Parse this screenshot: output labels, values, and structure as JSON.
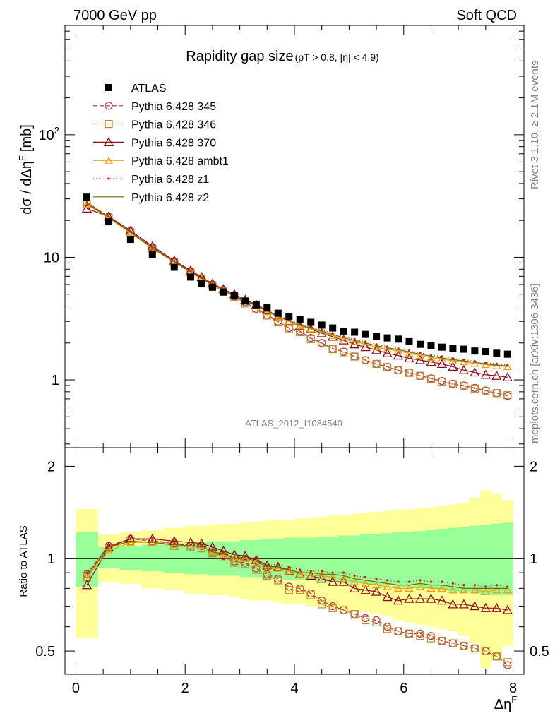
{
  "header": {
    "left": "7000 GeV pp",
    "right": "Soft QCD"
  },
  "side": {
    "top": "Rivet 3.1.10, ≥ 2.1M events",
    "bottom": "mcplots.cern.ch [arXiv:1306.3436]"
  },
  "chart_data": [
    {
      "type": "scatter",
      "title": "Rapidity gap size",
      "title_suffix": "(pT > 0.8, |η| < 4.9)",
      "watermark": "ATLAS_2012_I1084540",
      "ylabel": "dσ / dΔη",
      "ylabel_sup": "F",
      "ylabel_unit": "[mb]",
      "yscale": "log",
      "ylim": [
        0.28,
        780
      ],
      "xlim": [
        -0.2,
        8.2
      ],
      "y_ticks": [
        {
          "v": 1,
          "label": "1",
          "sup": ""
        },
        {
          "v": 10,
          "label": "10",
          "sup": ""
        },
        {
          "v": 100,
          "label": "10",
          "sup": "2"
        }
      ],
      "x": [
        0.2,
        0.6,
        1.0,
        1.4,
        1.8,
        2.1,
        2.3,
        2.5,
        2.7,
        2.9,
        3.1,
        3.3,
        3.5,
        3.7,
        3.9,
        4.1,
        4.3,
        4.5,
        4.7,
        4.9,
        5.1,
        5.3,
        5.5,
        5.7,
        5.9,
        6.1,
        6.3,
        6.5,
        6.7,
        6.9,
        7.1,
        7.3,
        7.5,
        7.7,
        7.9
      ],
      "data": {
        "name": "ATLAS",
        "values": [
          31,
          19.5,
          14,
          10.5,
          8.3,
          6.9,
          6.1,
          5.7,
          5.2,
          4.9,
          4.4,
          4.1,
          3.9,
          3.5,
          3.3,
          3.1,
          2.95,
          2.8,
          2.65,
          2.5,
          2.45,
          2.35,
          2.25,
          2.2,
          2.15,
          2.05,
          1.95,
          1.9,
          1.85,
          1.8,
          1.78,
          1.72,
          1.7,
          1.65,
          1.62
        ]
      },
      "series": [
        {
          "name": "Pythia 6.428 345",
          "color": "#b5353c",
          "dash": "6,3",
          "marker": "circle",
          "values": [
            28,
            21.5,
            16.5,
            12.0,
            9.3,
            7.7,
            6.7,
            6.0,
            5.4,
            4.8,
            4.3,
            3.8,
            3.4,
            3.0,
            2.65,
            2.5,
            2.2,
            2.0,
            1.8,
            1.7,
            1.55,
            1.45,
            1.35,
            1.28,
            1.2,
            1.15,
            1.08,
            1.03,
            0.98,
            0.93,
            0.9,
            0.86,
            0.82,
            0.78,
            0.74
          ]
        },
        {
          "name": "Pythia 6.428 346",
          "color": "#b5862e",
          "dash": "2,2",
          "marker": "square",
          "values": [
            27,
            21.0,
            16.0,
            11.8,
            9.1,
            7.5,
            6.6,
            5.9,
            5.3,
            4.75,
            4.2,
            3.75,
            3.35,
            2.95,
            2.6,
            2.45,
            2.15,
            1.98,
            1.78,
            1.68,
            1.55,
            1.44,
            1.35,
            1.27,
            1.2,
            1.14,
            1.08,
            1.02,
            0.97,
            0.92,
            0.89,
            0.85,
            0.81,
            0.78,
            0.75
          ]
        },
        {
          "name": "Pythia 6.428 370",
          "color": "#8b0d1e",
          "dash": "",
          "marker": "triangle",
          "values": [
            25,
            21.5,
            16.5,
            12.3,
            9.4,
            7.8,
            6.9,
            6.1,
            5.5,
            5.0,
            4.5,
            4.1,
            3.7,
            3.3,
            3.0,
            2.75,
            2.6,
            2.4,
            2.25,
            2.1,
            1.95,
            1.85,
            1.75,
            1.65,
            1.58,
            1.5,
            1.45,
            1.4,
            1.35,
            1.28,
            1.2,
            1.15,
            1.1,
            1.08,
            1.05
          ]
        },
        {
          "name": "Pythia 6.428 ambt1",
          "color": "#e89b0e",
          "dash": "",
          "marker": "opentri",
          "values": [
            27,
            21.0,
            15.8,
            11.8,
            9.2,
            7.6,
            6.7,
            6.0,
            5.4,
            4.85,
            4.4,
            4.0,
            3.6,
            3.25,
            3.0,
            2.75,
            2.6,
            2.45,
            2.3,
            2.15,
            2.05,
            1.95,
            1.85,
            1.78,
            1.72,
            1.65,
            1.58,
            1.52,
            1.48,
            1.43,
            1.4,
            1.36,
            1.33,
            1.3,
            1.28
          ]
        },
        {
          "name": "Pythia 6.428 z1",
          "color": "#c21d12",
          "dash": "1,3",
          "marker": "dot",
          "values": [
            28,
            21.5,
            16.2,
            12.0,
            9.3,
            7.7,
            6.8,
            6.1,
            5.5,
            4.9,
            4.5,
            4.1,
            3.7,
            3.35,
            3.1,
            2.85,
            2.7,
            2.55,
            2.4,
            2.25,
            2.15,
            2.05,
            1.95,
            1.87,
            1.8,
            1.73,
            1.66,
            1.6,
            1.55,
            1.5,
            1.46,
            1.42,
            1.38,
            1.35,
            1.32
          ]
        },
        {
          "name": "Pythia 6.428 z2",
          "color": "#6a6b06",
          "dash": "",
          "marker": "none",
          "values": [
            27.5,
            21.2,
            16.0,
            11.9,
            9.2,
            7.6,
            6.7,
            6.0,
            5.45,
            4.9,
            4.4,
            4.05,
            3.65,
            3.3,
            3.05,
            2.8,
            2.65,
            2.5,
            2.35,
            2.2,
            2.1,
            2.0,
            1.9,
            1.83,
            1.76,
            1.69,
            1.62,
            1.56,
            1.51,
            1.46,
            1.43,
            1.39,
            1.35,
            1.32,
            1.3
          ]
        }
      ]
    },
    {
      "type": "scatter",
      "ylabel": "Ratio to ATLAS",
      "xlabel": "Δη",
      "xlabel_sup": "F",
      "yscale": "log",
      "ylim": [
        0.42,
        2.3
      ],
      "xlim": [
        -0.2,
        8.2
      ],
      "x_ticks": [
        0,
        2,
        4,
        6,
        8
      ],
      "y_ticks": [
        {
          "v": 0.5,
          "label": "0.5"
        },
        {
          "v": 1,
          "label": "1"
        },
        {
          "v": 2,
          "label": "2"
        }
      ],
      "reference_line": 1,
      "band_edges": [
        0.0,
        0.4,
        0.8,
        1.2,
        1.6,
        2.0,
        2.2,
        2.4,
        2.6,
        2.8,
        3.0,
        3.2,
        3.4,
        3.6,
        3.8,
        4.0,
        4.2,
        4.4,
        4.6,
        4.8,
        5.0,
        5.2,
        5.4,
        5.6,
        5.8,
        6.0,
        6.2,
        6.4,
        6.6,
        6.8,
        7.0,
        7.2,
        7.4,
        7.6,
        7.8,
        8.0
      ],
      "band_inner": {
        "color": "#99ff99",
        "lo": [
          0.81,
          0.93,
          0.92,
          0.91,
          0.9,
          0.89,
          0.89,
          0.88,
          0.88,
          0.88,
          0.87,
          0.87,
          0.86,
          0.86,
          0.85,
          0.85,
          0.85,
          0.84,
          0.84,
          0.83,
          0.83,
          0.83,
          0.82,
          0.82,
          0.81,
          0.81,
          0.8,
          0.8,
          0.79,
          0.78,
          0.78,
          0.77,
          0.76,
          0.76,
          0.76
        ],
        "hi": [
          1.22,
          1.09,
          1.1,
          1.11,
          1.12,
          1.13,
          1.13,
          1.14,
          1.14,
          1.14,
          1.15,
          1.15,
          1.16,
          1.16,
          1.17,
          1.17,
          1.17,
          1.18,
          1.18,
          1.19,
          1.19,
          1.2,
          1.2,
          1.21,
          1.22,
          1.22,
          1.23,
          1.24,
          1.25,
          1.26,
          1.27,
          1.28,
          1.29,
          1.3,
          1.31
        ]
      },
      "band_outer": {
        "color": "#ffff99",
        "lo": [
          0.55,
          0.84,
          0.83,
          0.8,
          0.79,
          0.77,
          0.77,
          0.76,
          0.76,
          0.75,
          0.74,
          0.73,
          0.73,
          0.72,
          0.71,
          0.71,
          0.7,
          0.7,
          0.69,
          0.68,
          0.67,
          0.67,
          0.66,
          0.65,
          0.63,
          0.62,
          0.61,
          0.6,
          0.59,
          0.58,
          0.56,
          0.53,
          0.44,
          0.47,
          0.52
        ],
        "hi": [
          1.45,
          1.2,
          1.22,
          1.24,
          1.26,
          1.28,
          1.28,
          1.29,
          1.3,
          1.3,
          1.31,
          1.32,
          1.33,
          1.34,
          1.34,
          1.35,
          1.36,
          1.37,
          1.38,
          1.39,
          1.4,
          1.41,
          1.42,
          1.43,
          1.44,
          1.45,
          1.46,
          1.47,
          1.48,
          1.5,
          1.52,
          1.57,
          1.67,
          1.63,
          1.55
        ]
      },
      "series": [
        {
          "name": "Pythia 6.428 345",
          "color": "#b5353c",
          "dash": "6,3",
          "marker": "circle",
          "values": [
            0.89,
            1.1,
            1.16,
            1.14,
            1.12,
            1.1,
            1.1,
            1.05,
            1.02,
            0.98,
            0.97,
            0.93,
            0.89,
            0.86,
            0.81,
            0.8,
            0.77,
            0.73,
            0.7,
            0.68,
            0.66,
            0.64,
            0.63,
            0.6,
            0.58,
            0.57,
            0.57,
            0.56,
            0.54,
            0.53,
            0.52,
            0.51,
            0.5,
            0.48,
            0.45
          ]
        },
        {
          "name": "Pythia 6.428 346",
          "color": "#b5862e",
          "dash": "2,2",
          "marker": "square",
          "values": [
            0.87,
            1.08,
            1.14,
            1.13,
            1.1,
            1.09,
            1.08,
            1.04,
            1.01,
            0.97,
            0.96,
            0.92,
            0.88,
            0.85,
            0.79,
            0.79,
            0.76,
            0.71,
            0.69,
            0.68,
            0.66,
            0.63,
            0.62,
            0.59,
            0.58,
            0.57,
            0.56,
            0.55,
            0.54,
            0.53,
            0.52,
            0.51,
            0.5,
            0.48,
            0.46
          ]
        },
        {
          "name": "Pythia 6.428 370",
          "color": "#8b0d1e",
          "dash": "",
          "marker": "triangle",
          "values": [
            0.82,
            1.09,
            1.16,
            1.16,
            1.14,
            1.13,
            1.12,
            1.09,
            1.06,
            1.03,
            1.02,
            0.99,
            0.95,
            0.94,
            0.91,
            0.89,
            0.88,
            0.86,
            0.84,
            0.84,
            0.8,
            0.79,
            0.78,
            0.75,
            0.73,
            0.74,
            0.74,
            0.74,
            0.73,
            0.71,
            0.71,
            0.7,
            0.69,
            0.69,
            0.68
          ]
        },
        {
          "name": "Pythia 6.428 ambt1",
          "color": "#e89b0e",
          "dash": "",
          "marker": "opentri",
          "values": [
            0.87,
            1.06,
            1.13,
            1.13,
            1.11,
            1.1,
            1.1,
            1.05,
            1.03,
            0.99,
            1.0,
            0.97,
            0.92,
            0.93,
            0.91,
            0.89,
            0.88,
            0.88,
            0.87,
            0.86,
            0.84,
            0.83,
            0.82,
            0.81,
            0.8,
            0.8,
            0.81,
            0.8,
            0.8,
            0.79,
            0.79,
            0.79,
            0.78,
            0.79,
            0.79
          ]
        },
        {
          "name": "Pythia 6.428 z1",
          "color": "#c21d12",
          "dash": "1,3",
          "marker": "dot",
          "values": [
            0.9,
            1.1,
            1.16,
            1.15,
            1.12,
            1.11,
            1.11,
            1.07,
            1.05,
            1.01,
            1.02,
            1.0,
            0.95,
            0.96,
            0.94,
            0.92,
            0.91,
            0.91,
            0.9,
            0.9,
            0.88,
            0.87,
            0.86,
            0.85,
            0.84,
            0.84,
            0.85,
            0.84,
            0.84,
            0.83,
            0.82,
            0.82,
            0.81,
            0.82,
            0.81
          ]
        },
        {
          "name": "Pythia 6.428 z2",
          "color": "#6a6b06",
          "dash": "",
          "marker": "none",
          "values": [
            0.88,
            1.09,
            1.14,
            1.13,
            1.11,
            1.1,
            1.1,
            1.05,
            1.04,
            1.0,
            1.01,
            0.98,
            0.94,
            0.94,
            0.92,
            0.9,
            0.9,
            0.89,
            0.89,
            0.88,
            0.86,
            0.85,
            0.84,
            0.83,
            0.82,
            0.82,
            0.83,
            0.82,
            0.82,
            0.81,
            0.8,
            0.8,
            0.8,
            0.8,
            0.8
          ]
        }
      ]
    }
  ]
}
